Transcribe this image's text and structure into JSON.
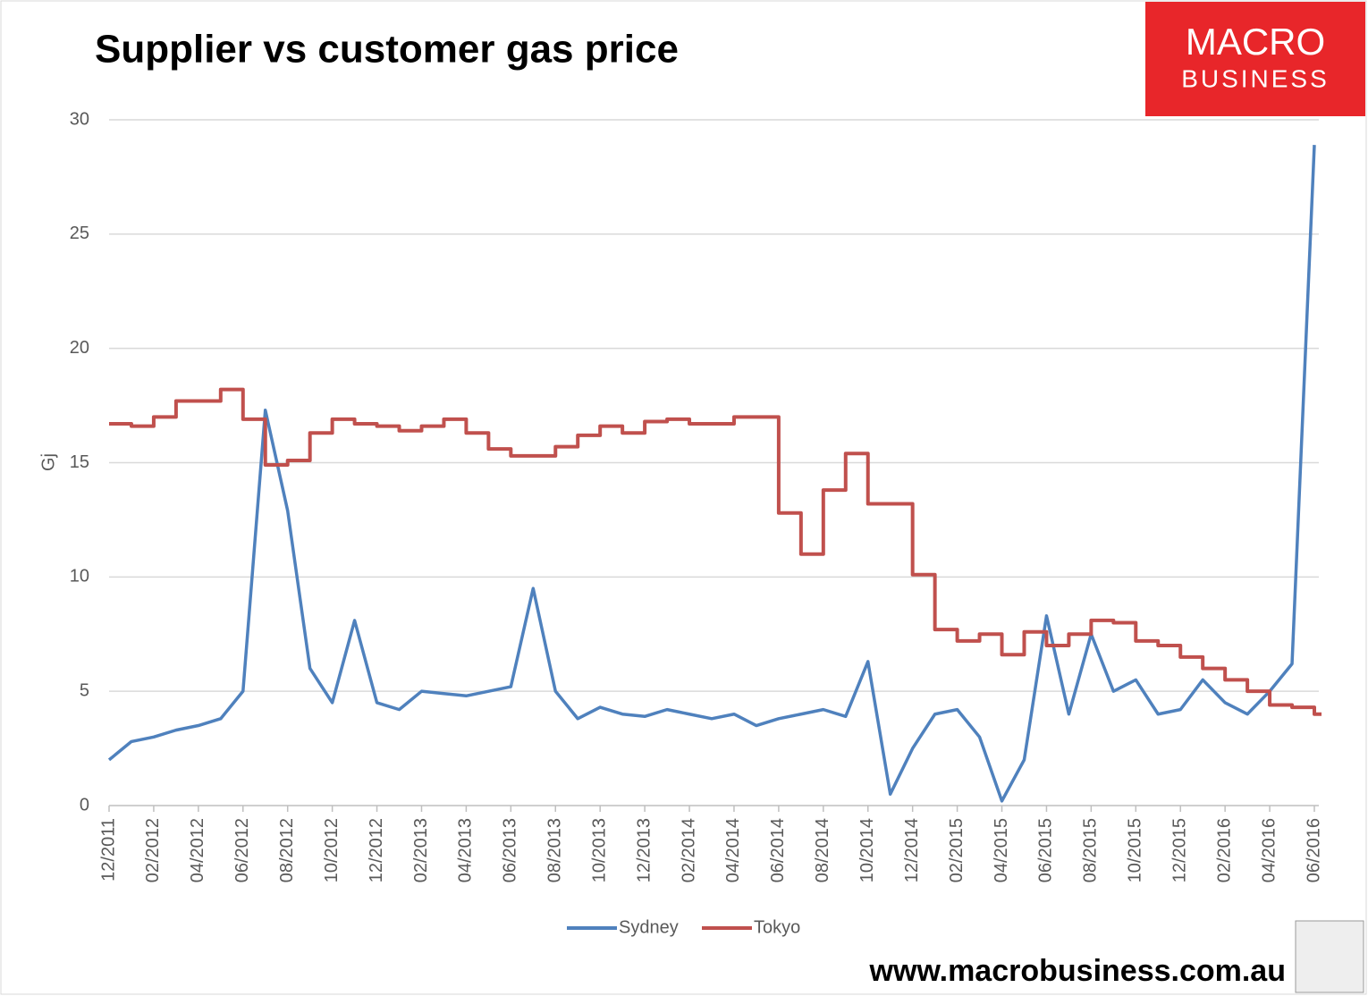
{
  "chart_data": {
    "type": "line",
    "title": "Supplier vs customer gas price",
    "y_label": "Gj",
    "logo": [
      "MACRO",
      "BUSINESS"
    ],
    "source": "www.macrobusiness.com.au",
    "categories": [
      "12/2011",
      null,
      "02/2012",
      null,
      "04/2012",
      null,
      "06/2012",
      null,
      "08/2012",
      null,
      "10/2012",
      null,
      "12/2012",
      null,
      "02/2013",
      null,
      "04/2013",
      null,
      "06/2013",
      null,
      "08/2013",
      null,
      "10/2013",
      null,
      "12/2013",
      null,
      "02/2014",
      null,
      "04/2014",
      null,
      "06/2014",
      null,
      "08/2014",
      null,
      "10/2014",
      null,
      "12/2014",
      null,
      "02/2015",
      null,
      "04/2015",
      null,
      "06/2015",
      null,
      "08/2015",
      null,
      "10/2015",
      null,
      "12/2015",
      null,
      "02/2016",
      null,
      "04/2016",
      null,
      "06/2016"
    ],
    "series": [
      {
        "name": "Sydney",
        "color": "#4f81bd",
        "step": false,
        "values": [
          2.0,
          2.8,
          3.0,
          3.3,
          3.5,
          3.8,
          5.0,
          17.3,
          12.9,
          6.0,
          4.5,
          8.1,
          4.5,
          4.2,
          5.0,
          4.9,
          4.8,
          5.0,
          5.2,
          9.5,
          5.0,
          3.8,
          4.3,
          4.0,
          3.9,
          4.2,
          4.0,
          3.8,
          4.0,
          3.5,
          3.8,
          4.0,
          4.2,
          3.9,
          6.3,
          0.5,
          2.5,
          4.0,
          4.2,
          3.0,
          0.2,
          2.0,
          8.3,
          4.0,
          7.5,
          5.0,
          5.5,
          4.0,
          4.2,
          5.5,
          4.5,
          4.0,
          5.0,
          6.2,
          28.9
        ]
      },
      {
        "name": "Tokyo",
        "color": "#c0504d",
        "step": true,
        "values": [
          16.7,
          16.6,
          17.0,
          17.7,
          17.7,
          18.2,
          16.9,
          14.9,
          15.1,
          16.3,
          16.9,
          16.7,
          16.6,
          16.4,
          16.6,
          16.9,
          16.3,
          15.6,
          15.3,
          15.3,
          15.7,
          16.2,
          16.6,
          16.3,
          16.8,
          16.9,
          16.7,
          16.7,
          17.0,
          17.0,
          12.8,
          11.0,
          13.8,
          15.4,
          13.2,
          13.2,
          10.1,
          7.7,
          7.2,
          7.5,
          6.6,
          7.6,
          7.0,
          7.5,
          8.1,
          8.0,
          7.2,
          7.0,
          6.5,
          6.0,
          5.5,
          5.0,
          4.4,
          4.3,
          4.0
        ]
      }
    ],
    "ylim": [
      0,
      30
    ],
    "yticks": [
      0,
      5,
      10,
      15,
      20,
      25,
      30
    ],
    "grid": true,
    "legend": "bottom"
  }
}
